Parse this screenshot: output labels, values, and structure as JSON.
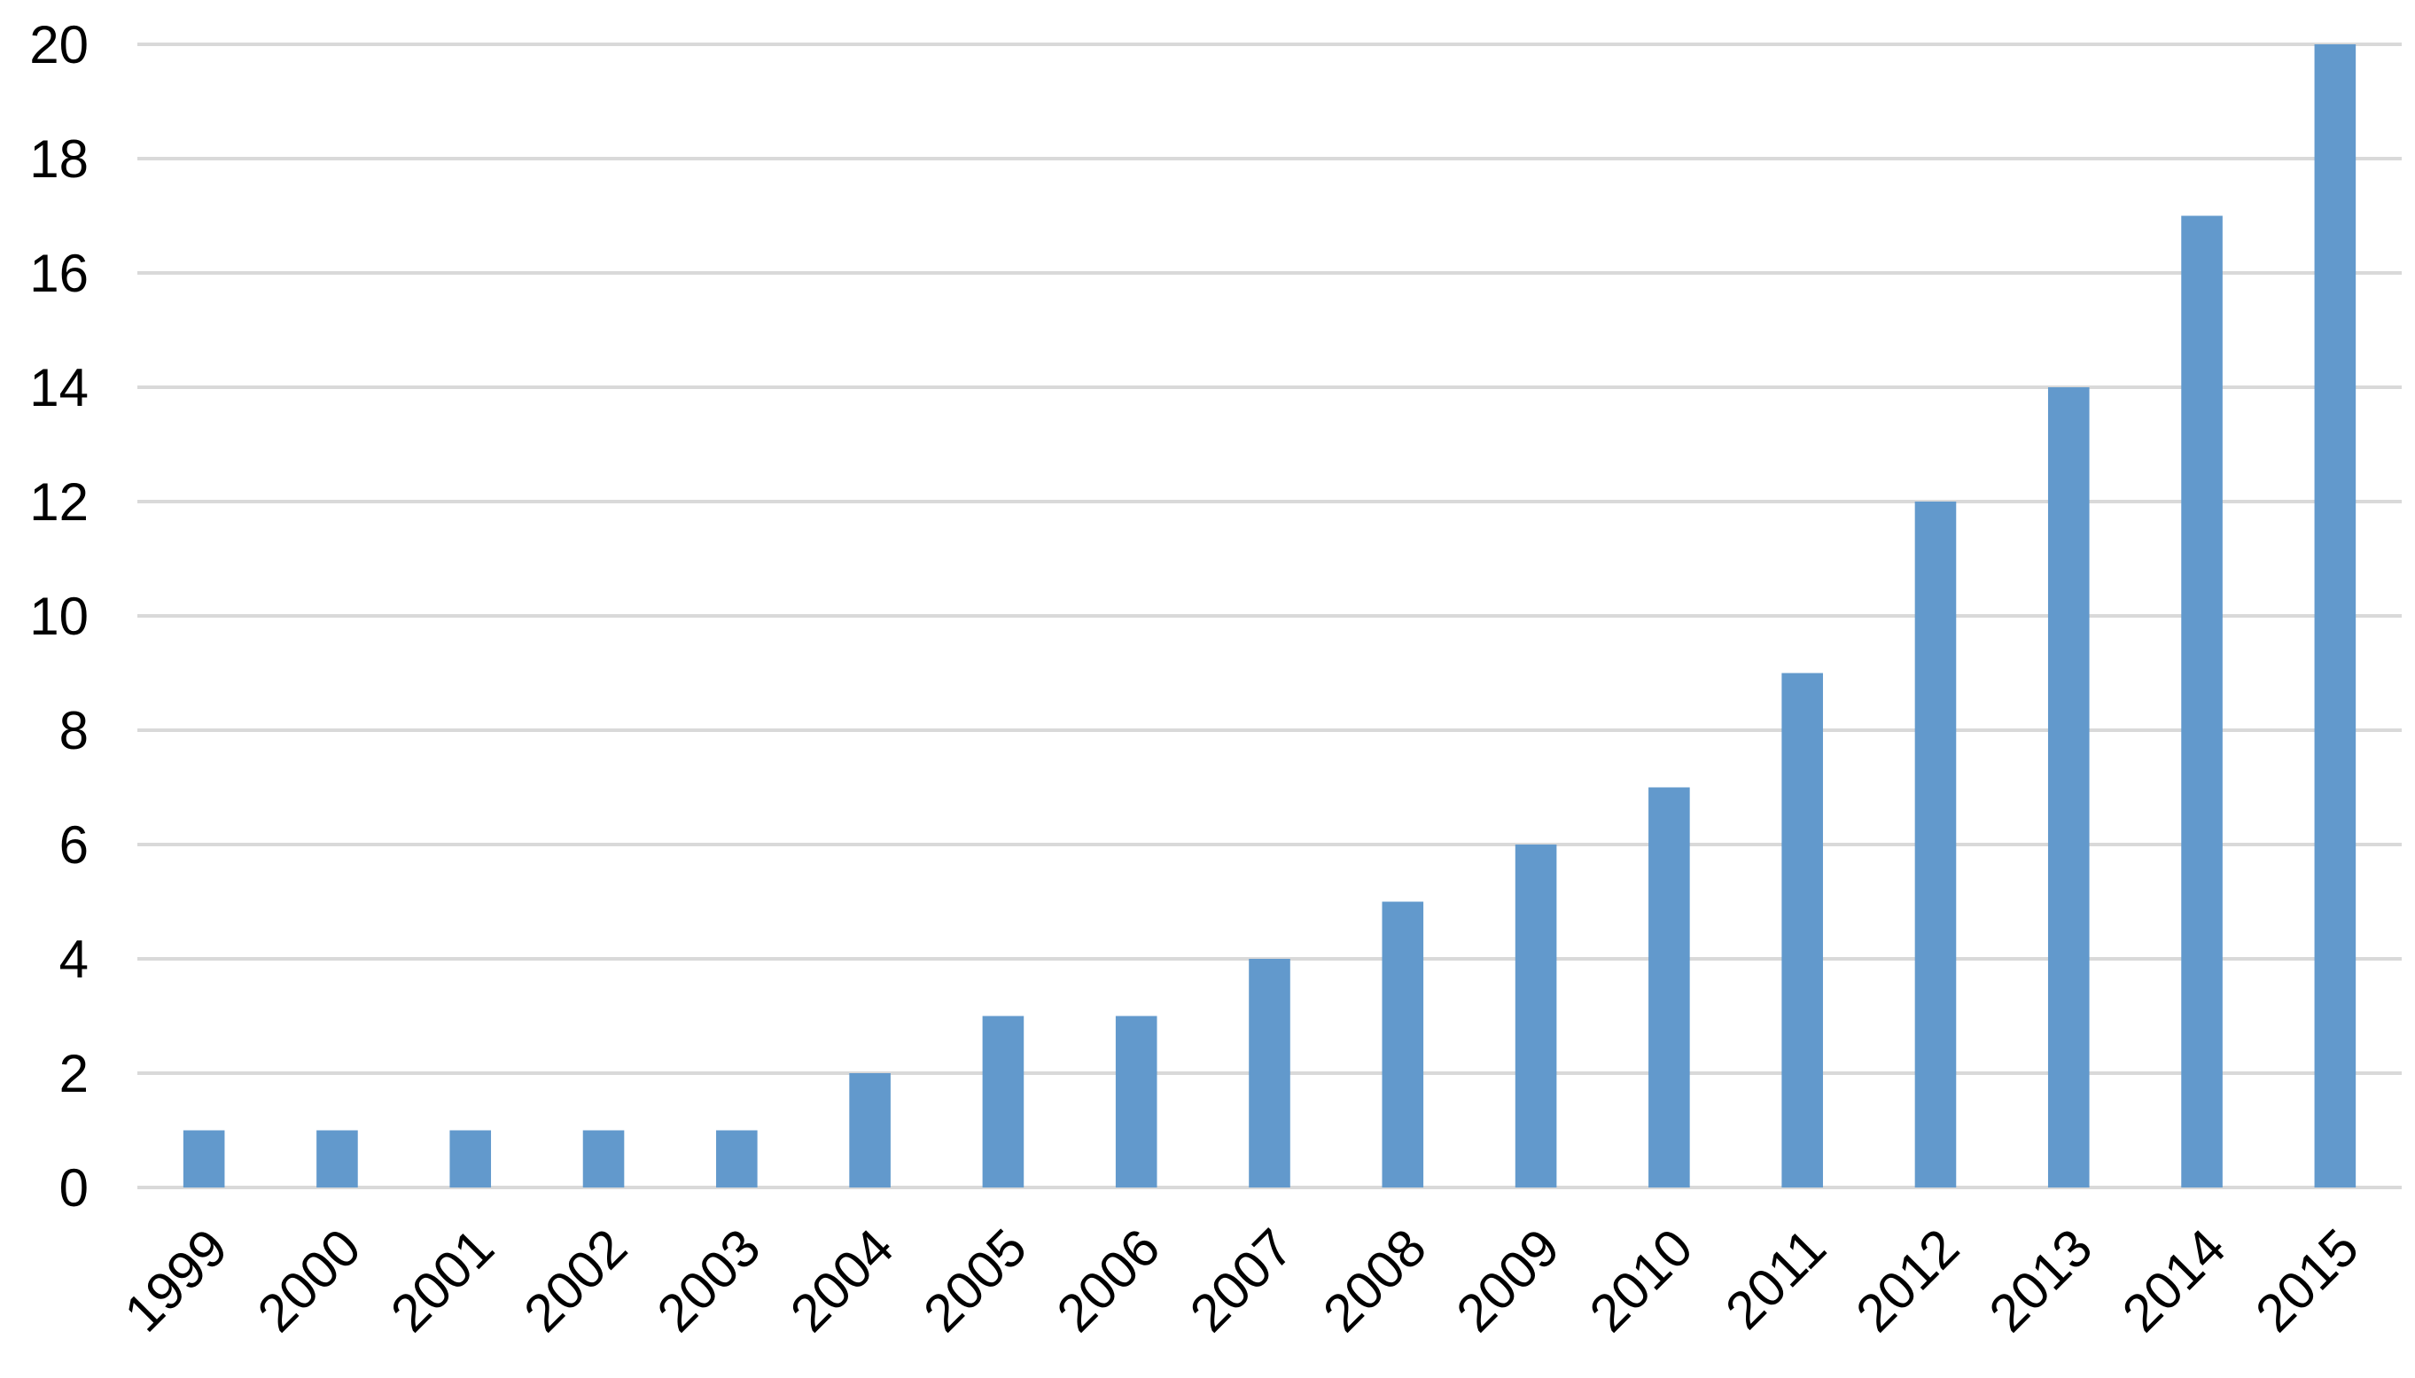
{
  "chart_data": {
    "type": "bar",
    "categories": [
      "1999",
      "2000",
      "2001",
      "2002",
      "2003",
      "2004",
      "2005",
      "2006",
      "2007",
      "2008",
      "2009",
      "2010",
      "2011",
      "2012",
      "2013",
      "2014",
      "2015"
    ],
    "values": [
      1,
      1,
      1,
      1,
      1,
      2,
      3,
      3,
      4,
      5,
      6,
      7,
      9,
      12,
      14,
      17,
      20
    ],
    "title": "",
    "xlabel": "",
    "ylabel": "",
    "ylim": [
      0,
      20
    ],
    "yticks": [
      "0",
      "2",
      "4",
      "6",
      "8",
      "10",
      "12",
      "14",
      "16",
      "18",
      "20"
    ],
    "grid": true,
    "legend": "none",
    "bar_color": "#6299cc",
    "grid_color": "#d9d9d9",
    "text_color": "#000000"
  }
}
